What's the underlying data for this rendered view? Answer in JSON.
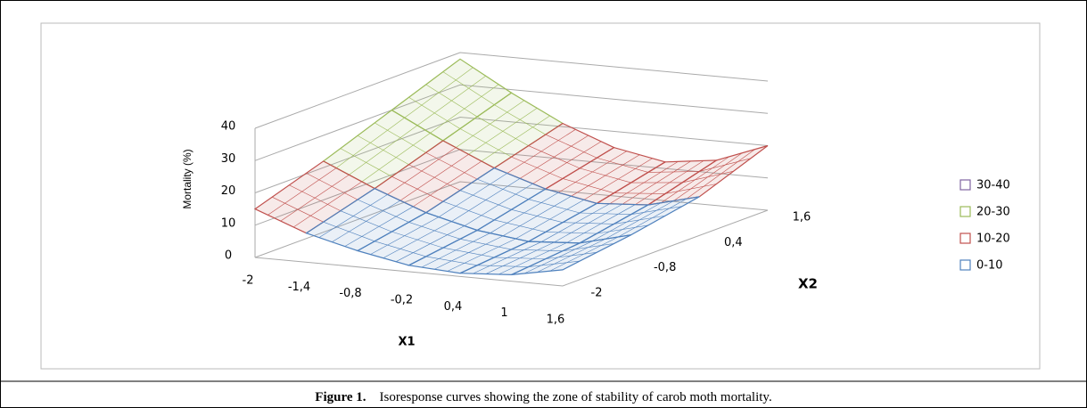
{
  "figure_label": "Figure 1.",
  "caption": "Isoresponse curves showing the zone of stability of carob moth mortality.",
  "chart_data": {
    "type": "surface",
    "zlabel": "Mortality (%)",
    "xlabel": "X1",
    "depthlabel": "X2",
    "categories": [
      "-2",
      "-1,4",
      "-0,8",
      "-0,2",
      "0,4",
      "1",
      "1,6"
    ],
    "depth_categories": [
      "-2",
      "-0,8",
      "0,4",
      "1,6"
    ],
    "values": [
      [
        15,
        9,
        5,
        2,
        1,
        2,
        5
      ],
      [
        22,
        15,
        9,
        5,
        3,
        4,
        8
      ],
      [
        30,
        22,
        15,
        10,
        7,
        8,
        12
      ],
      [
        38,
        29,
        21,
        15,
        12,
        14,
        20
      ]
    ],
    "zlim": [
      0,
      40
    ],
    "zticks": [
      0,
      10,
      20,
      30,
      40
    ],
    "series": [
      {
        "name": "30-40",
        "color": "#8064a2"
      },
      {
        "name": "20-30",
        "color": "#9bbb59"
      },
      {
        "name": "10-20",
        "color": "#c0504d"
      },
      {
        "name": "0-10",
        "color": "#4f81bd"
      }
    ],
    "grid": true,
    "legend": "right"
  }
}
